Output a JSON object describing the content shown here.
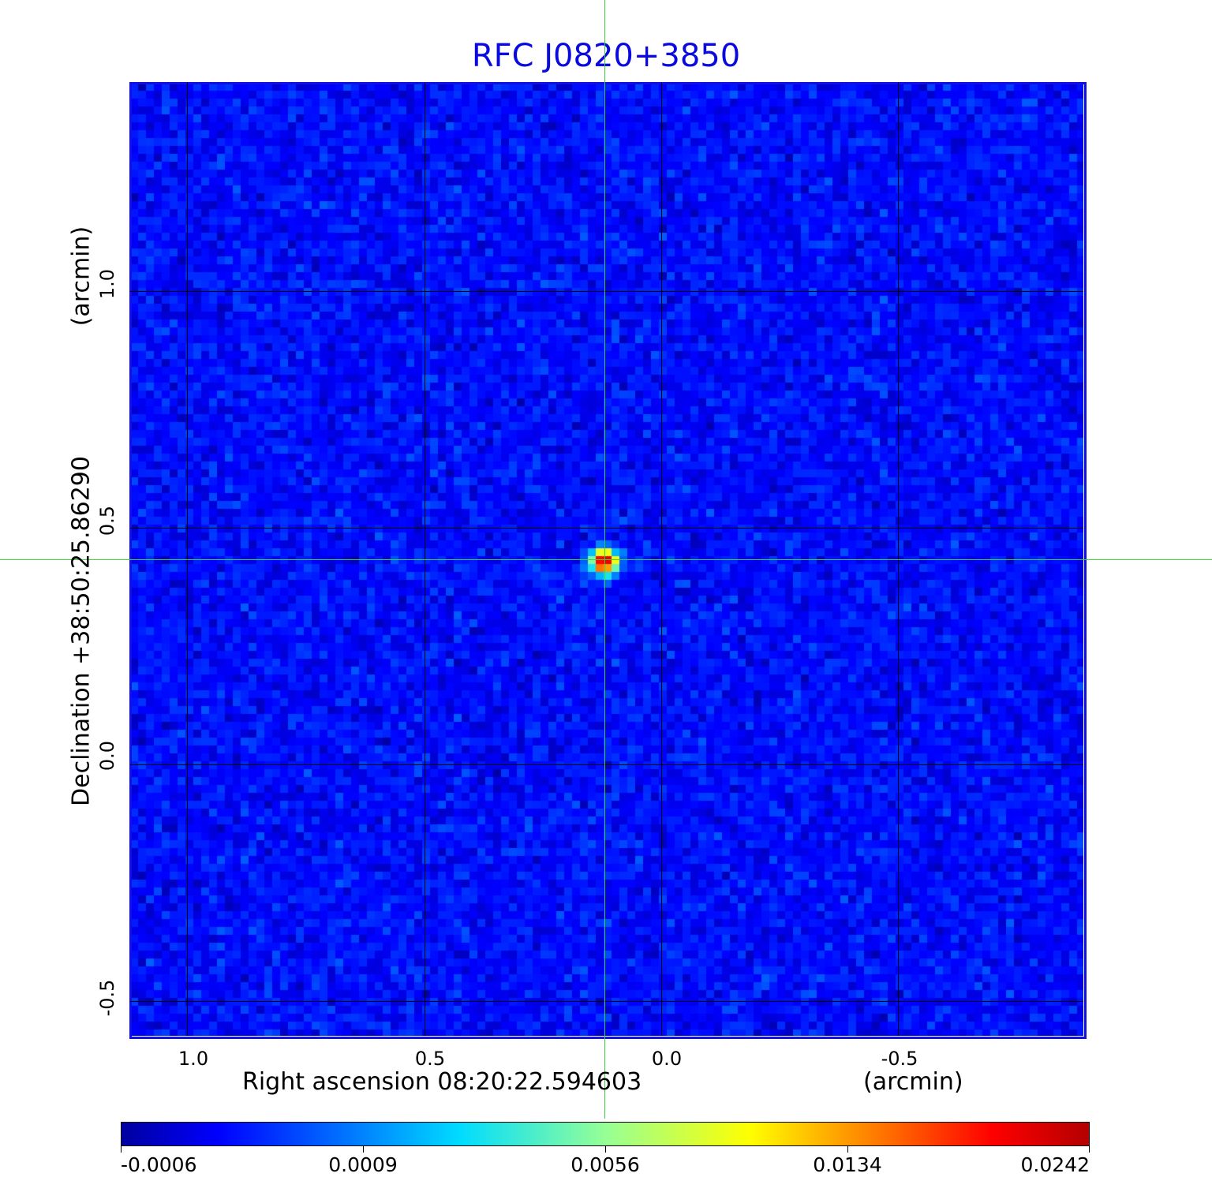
{
  "chart_data": {
    "type": "heatmap",
    "title": "RFC J0820+3850",
    "xlabel": "Right ascension  08:20:22.594603",
    "xlabel_unit": "(arcmin)",
    "ylabel": "Declination  +38:50:25.86290",
    "ylabel_unit": "(arcmin)",
    "xlim": [
      1.12,
      -0.89
    ],
    "ylim": [
      -0.57,
      1.44
    ],
    "x_ticks": [
      "1.0",
      "0.5",
      "0.0",
      "-0.5"
    ],
    "x_tick_values": [
      1.0,
      0.5,
      0.0,
      -0.5
    ],
    "y_ticks": [
      "1.0",
      "0.5",
      "0.0",
      "-0.5"
    ],
    "y_tick_values": [
      1.0,
      0.5,
      0.0,
      -0.5
    ],
    "grid": true,
    "crosshair": {
      "x": 0.12,
      "y": 0.43,
      "color": "#3ad43a"
    },
    "source": {
      "x": 0.12,
      "y": 0.43,
      "peak": 0.0242
    },
    "colorbar": {
      "ticks": [
        "-0.0006",
        "0.0009",
        "0.0056",
        "0.0134",
        "0.0242"
      ],
      "tick_values": [
        -0.0006,
        0.0009,
        0.0056,
        0.0134,
        0.0242
      ],
      "colormap": "jet",
      "placement": "bottom"
    },
    "title_color": "#0a0ae0",
    "frame_color": "#1010e0"
  }
}
